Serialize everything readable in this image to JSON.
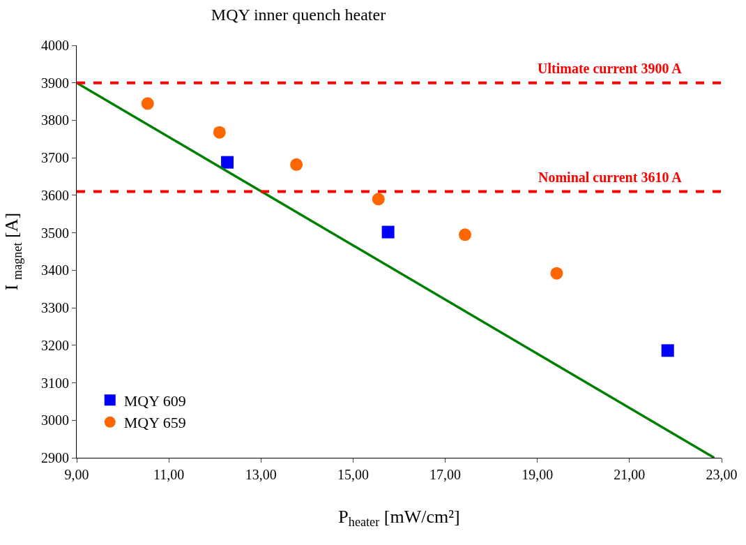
{
  "chart_data": {
    "type": "scatter",
    "title": "MQY inner quench heater",
    "xlabel": "P$_{heater}$ [mW/cm²]",
    "ylabel": "I $_{magnet}$ [A]",
    "xlim": [
      9,
      23
    ],
    "xticks": [
      {
        "value": 9,
        "label": "9,00"
      },
      {
        "value": 11,
        "label": "11,00"
      },
      {
        "value": 13,
        "label": "13,00"
      },
      {
        "value": 15,
        "label": "15,00"
      },
      {
        "value": 17,
        "label": "17,00"
      },
      {
        "value": 19,
        "label": "19,00"
      },
      {
        "value": 21,
        "label": "21,00"
      },
      {
        "value": 23,
        "label": "23,00"
      }
    ],
    "ylim": [
      2900,
      4000
    ],
    "yticks": [
      2900,
      3000,
      3100,
      3200,
      3300,
      3400,
      3500,
      3600,
      3700,
      3800,
      3900,
      4000
    ],
    "grid": false,
    "legend": "bottom left",
    "series": [
      {
        "name": "MQY 609",
        "color": "#0000ff",
        "marker": "square",
        "x": [
          12.27,
          15.76,
          21.83
        ],
        "values": [
          3688,
          3502,
          3186
        ]
      },
      {
        "name": "MQY 659",
        "color": "#ff6600",
        "marker": "circle",
        "x": [
          10.54,
          12.1,
          13.77,
          15.55,
          17.43,
          19.42
        ],
        "values": [
          3845,
          3768,
          3682,
          3590,
          3495,
          3392
        ]
      },
      {
        "type": "line",
        "color": "#008000",
        "marker": "none",
        "line_style": "solid",
        "x": [
          9,
          22.84
        ],
        "values": [
          3900,
          2900
        ]
      }
    ],
    "ref_lines": [
      {
        "axis": "y",
        "value": 3900,
        "label": "Ultimate current 3900 A",
        "color": "#ff0000",
        "line_style": "dashed"
      },
      {
        "axis": "y",
        "value": 3610,
        "label": "Nominal current 3610 A",
        "color": "#ff0000",
        "line_style": "dashed"
      }
    ]
  }
}
